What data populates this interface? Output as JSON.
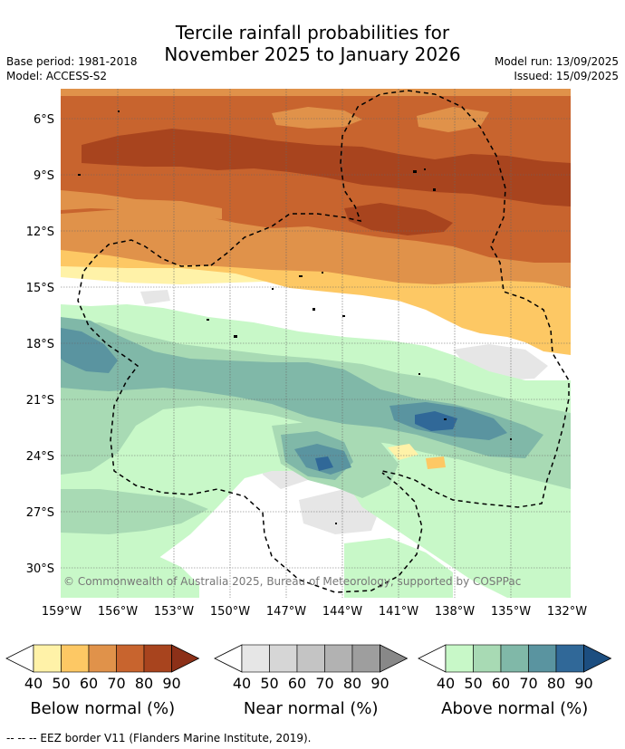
{
  "title_line1": "Tercile rainfall probabilities for",
  "title_line2": "November 2025 to January 2026",
  "base_period": "Base period: 1981-2018",
  "model": "Model: ACCESS-S2",
  "model_run": "Model run: 13/09/2025",
  "issued": "Issued: 15/09/2025",
  "copyright": "© Commonwealth of Australia 2025, Bureau of Meteorology, supported by COSPPac",
  "lat_labels": [
    "6°S",
    "9°S",
    "12°S",
    "15°S",
    "18°S",
    "21°S",
    "24°S",
    "27°S",
    "30°S"
  ],
  "lon_labels": [
    "159°W",
    "156°W",
    "153°W",
    "150°W",
    "147°W",
    "144°W",
    "141°W",
    "138°W",
    "135°W",
    "132°W"
  ],
  "colorbars": [
    {
      "title": "Below normal (%)",
      "ticks": [
        "40",
        "50",
        "60",
        "70",
        "80",
        "90"
      ],
      "colors": [
        "#fff2a8",
        "#fdc864",
        "#e0924a",
        "#c8642e",
        "#a8441e",
        "#8c3018"
      ]
    },
    {
      "title": "Near normal (%)",
      "ticks": [
        "40",
        "50",
        "60",
        "70",
        "80",
        "90"
      ],
      "colors": [
        "#e6e6e6",
        "#d6d6d6",
        "#c4c4c4",
        "#b2b2b2",
        "#9e9e9e",
        "#888888"
      ]
    },
    {
      "title": "Above normal (%)",
      "ticks": [
        "40",
        "50",
        "60",
        "70",
        "80",
        "90"
      ],
      "colors": [
        "#c8f8c8",
        "#a8dab4",
        "#80b8a8",
        "#5a94a0",
        "#306898",
        "#1c4e80"
      ]
    }
  ],
  "footnote": "--  --  -- EEZ border V11 (Flanders Marine Institute, 2019).",
  "colors": {
    "below_40": "#fff2a8",
    "below_50": "#fdc864",
    "below_60": "#e0924a",
    "below_70": "#c8642e",
    "below_80": "#a8441e",
    "near_40": "#e6e6e6",
    "near_50": "#d6d6d6",
    "above_40": "#c8f8c8",
    "above_50": "#a8dab4",
    "above_60": "#80b8a8",
    "above_70": "#5a94a0",
    "above_80": "#306898"
  }
}
